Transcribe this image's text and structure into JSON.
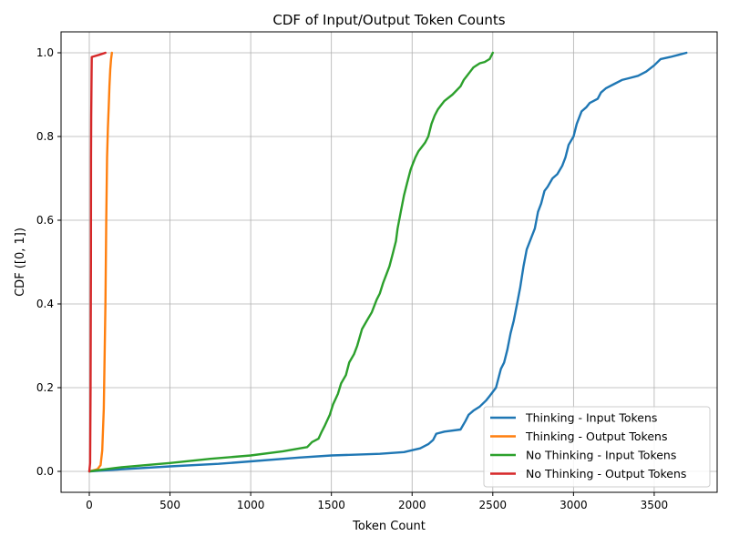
{
  "chart_data": {
    "type": "line",
    "title": "CDF of Input/Output Token Counts",
    "xlabel": "Token Count",
    "ylabel": "CDF ([0, 1])",
    "xlim": [
      -175,
      3890
    ],
    "ylim": [
      -0.05,
      1.05
    ],
    "xticks": [
      0,
      500,
      1000,
      1500,
      2000,
      2500,
      3000,
      3500
    ],
    "yticks": [
      0.0,
      0.2,
      0.4,
      0.6,
      0.8,
      1.0
    ],
    "xtick_labels": [
      "0",
      "500",
      "1000",
      "1500",
      "2000",
      "2500",
      "3000",
      "3500"
    ],
    "ytick_labels": [
      "0.0",
      "0.2",
      "0.4",
      "0.6",
      "0.8",
      "1.0"
    ],
    "grid": true,
    "legend_position": "lower-right",
    "series": [
      {
        "name": "Thinking - Input Tokens",
        "color": "#1f77b4",
        "x": [
          0,
          200,
          500,
          800,
          1000,
          1300,
          1500,
          1800,
          1950,
          2050,
          2100,
          2130,
          2150,
          2200,
          2300,
          2330,
          2350,
          2380,
          2420,
          2460,
          2480,
          2500,
          2520,
          2540,
          2550,
          2570,
          2590,
          2610,
          2630,
          2650,
          2670,
          2690,
          2710,
          2740,
          2760,
          2780,
          2800,
          2820,
          2840,
          2870,
          2900,
          2930,
          2950,
          2970,
          3000,
          3020,
          3050,
          3080,
          3100,
          3150,
          3170,
          3200,
          3250,
          3300,
          3350,
          3400,
          3450,
          3500,
          3540,
          3600,
          3650,
          3700
        ],
        "y": [
          0.0,
          0.005,
          0.012,
          0.018,
          0.024,
          0.033,
          0.038,
          0.042,
          0.046,
          0.055,
          0.065,
          0.075,
          0.09,
          0.095,
          0.1,
          0.12,
          0.135,
          0.145,
          0.155,
          0.17,
          0.18,
          0.19,
          0.2,
          0.23,
          0.245,
          0.26,
          0.29,
          0.33,
          0.36,
          0.4,
          0.44,
          0.49,
          0.53,
          0.56,
          0.58,
          0.62,
          0.64,
          0.67,
          0.68,
          0.7,
          0.71,
          0.73,
          0.75,
          0.78,
          0.8,
          0.83,
          0.86,
          0.87,
          0.88,
          0.89,
          0.905,
          0.915,
          0.925,
          0.935,
          0.94,
          0.945,
          0.955,
          0.97,
          0.985,
          0.99,
          0.995,
          1.0
        ]
      },
      {
        "name": "Thinking - Output Tokens",
        "color": "#ff7f0e",
        "x": [
          0,
          50,
          70,
          80,
          90,
          100,
          105,
          110,
          115,
          120,
          125,
          130,
          135,
          140
        ],
        "y": [
          0.0,
          0.005,
          0.015,
          0.05,
          0.15,
          0.4,
          0.6,
          0.75,
          0.82,
          0.87,
          0.92,
          0.96,
          0.985,
          1.0
        ]
      },
      {
        "name": "No Thinking - Input Tokens",
        "color": "#2ca02c",
        "x": [
          0,
          200,
          500,
          750,
          1000,
          1200,
          1350,
          1380,
          1420,
          1440,
          1460,
          1490,
          1510,
          1540,
          1560,
          1590,
          1610,
          1640,
          1660,
          1690,
          1720,
          1750,
          1780,
          1800,
          1820,
          1840,
          1860,
          1880,
          1900,
          1910,
          1930,
          1950,
          1970,
          1990,
          2000,
          2020,
          2040,
          2060,
          2080,
          2100,
          2120,
          2140,
          2160,
          2180,
          2200,
          2250,
          2300,
          2320,
          2340,
          2360,
          2380,
          2400,
          2420,
          2450,
          2480,
          2500
        ],
        "y": [
          0.0,
          0.01,
          0.02,
          0.03,
          0.038,
          0.048,
          0.058,
          0.07,
          0.078,
          0.095,
          0.11,
          0.135,
          0.16,
          0.185,
          0.21,
          0.23,
          0.26,
          0.28,
          0.3,
          0.34,
          0.36,
          0.38,
          0.41,
          0.425,
          0.45,
          0.47,
          0.49,
          0.52,
          0.55,
          0.58,
          0.62,
          0.66,
          0.69,
          0.72,
          0.73,
          0.75,
          0.765,
          0.775,
          0.785,
          0.8,
          0.83,
          0.85,
          0.865,
          0.875,
          0.885,
          0.9,
          0.92,
          0.935,
          0.945,
          0.955,
          0.965,
          0.97,
          0.975,
          0.978,
          0.985,
          1.0
        ]
      },
      {
        "name": "No Thinking - Output Tokens",
        "color": "#d62728",
        "x": [
          0,
          5,
          8,
          10,
          11,
          12,
          13,
          14,
          15,
          60,
          100
        ],
        "y": [
          0.0,
          0.02,
          0.2,
          0.5,
          0.75,
          0.85,
          0.9,
          0.95,
          0.99,
          0.995,
          1.0
        ]
      }
    ]
  }
}
